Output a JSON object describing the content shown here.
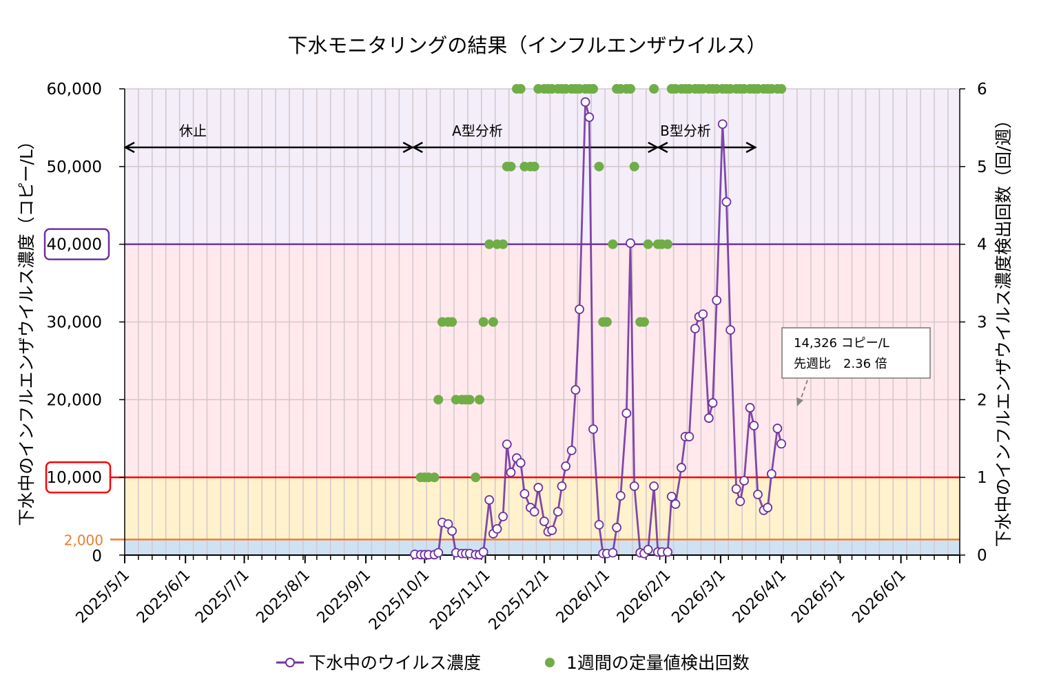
{
  "chart_data": {
    "type": "line",
    "title": "下水モニタリングの結果（インフルエンザウイルス）",
    "ylabel": "下水中のインフルエンザウイルス濃度（コピー/L）",
    "y2label": "下水中のインフルエンザウイルス濃度検出回数（回/週）",
    "ylim": [
      0,
      60000
    ],
    "y2lim": [
      0,
      6
    ],
    "xlim": [
      "2025/5/1",
      "2026/7/1"
    ],
    "y_ticks": [
      "0",
      "2,000",
      "10,000",
      "20,000",
      "30,000",
      "40,000",
      "50,000",
      "60,000"
    ],
    "y_tick_values": [
      0,
      2000,
      10000,
      20000,
      30000,
      40000,
      50000,
      60000
    ],
    "y2_ticks": [
      "0",
      "1",
      "2",
      "3",
      "4",
      "5",
      "6"
    ],
    "x_ticks": [
      "2025/5/1",
      "2025/6/1",
      "2025/7/1",
      "2025/8/1",
      "2025/9/1",
      "2025/10/1",
      "2025/11/1",
      "2025/12/1",
      "2026/1/1",
      "2026/2/1",
      "2026/3/1",
      "2026/4/1",
      "2026/5/1",
      "2026/6/1"
    ],
    "grid": true,
    "legend_position": "bottom",
    "thresholds": [
      {
        "value": 2000,
        "color": "#ed7d31"
      },
      {
        "value": 10000,
        "color": "#ff0000"
      },
      {
        "value": 40000,
        "color": "#7030a0"
      }
    ],
    "bands": [
      {
        "from": 0,
        "to": 2000,
        "color": "#cfe2f3"
      },
      {
        "from": 2000,
        "to": 10000,
        "color": "#fff2cc"
      },
      {
        "from": 10000,
        "to": 40000,
        "color": "#ffe9ec"
      },
      {
        "from": 40000,
        "to": 60000,
        "color": "#f3eefa"
      }
    ],
    "periods": [
      {
        "label": "休止",
        "from": "2025/5/1",
        "to": "2025/9/25"
      },
      {
        "label": "A型分析",
        "from": "2025/9/25",
        "to": "2026/1/28"
      },
      {
        "label": "B型分析",
        "from": "2026/1/28",
        "to": "2026/3/19"
      }
    ],
    "annotation": {
      "line1": "14,326 コピー/L",
      "line2": "先週比　2.36 倍"
    },
    "series": [
      {
        "name": "下水中のウイルス濃度",
        "axis": "left",
        "color": "#7030a0",
        "marker": "open-circle"
      },
      {
        "name": "1週間の定量値検出回数",
        "axis": "right",
        "color": "#70ad47",
        "marker": "filled-circle"
      }
    ],
    "x": [
      "2025/9/26",
      "2025/9/29",
      "2025/10/1",
      "2025/10/3",
      "2025/10/6",
      "2025/10/8",
      "2025/10/10",
      "2025/10/13",
      "2025/10/15",
      "2025/10/17",
      "2025/10/20",
      "2025/10/22",
      "2025/10/24",
      "2025/10/27",
      "2025/10/29",
      "2025/10/31",
      "2025/11/3",
      "2025/11/5",
      "2025/11/7",
      "2025/11/10",
      "2025/11/12",
      "2025/11/14",
      "2025/11/17",
      "2025/11/19",
      "2025/11/21",
      "2025/11/24",
      "2025/11/26",
      "2025/11/28",
      "2025/12/1",
      "2025/12/3",
      "2025/12/5",
      "2025/12/8",
      "2025/12/10",
      "2025/12/12",
      "2025/12/15",
      "2025/12/17",
      "2025/12/19",
      "2025/12/22",
      "2025/12/24",
      "2025/12/26",
      "2025/12/29",
      "2025/12/31",
      "2026/1/2",
      "2026/1/5",
      "2026/1/7",
      "2026/1/9",
      "2026/1/12",
      "2026/1/14",
      "2026/1/16",
      "2026/1/19",
      "2026/1/21",
      "2026/1/23",
      "2026/1/26",
      "2026/1/28",
      "2026/1/30",
      "2026/2/2",
      "2026/2/4",
      "2026/2/6",
      "2026/2/9",
      "2026/2/11",
      "2026/2/13",
      "2026/2/16",
      "2026/2/18",
      "2026/2/20",
      "2026/2/23",
      "2026/2/25",
      "2026/2/27",
      "2026/3/2",
      "2026/3/4",
      "2026/3/6",
      "2026/3/9",
      "2026/3/11",
      "2026/3/13",
      "2026/3/16",
      "2026/3/18",
      "2026/3/20",
      "2026/3/23",
      "2026/3/25",
      "2026/3/27",
      "2026/3/30",
      "2026/4/1"
    ],
    "virus": [
      100,
      50,
      50,
      50,
      50,
      300,
      4200,
      4000,
      3100,
      300,
      200,
      200,
      200,
      50,
      50,
      400,
      7100,
      2750,
      3370,
      4960,
      14260,
      10630,
      12490,
      11870,
      7890,
      6110,
      5580,
      8680,
      4340,
      3010,
      3190,
      5580,
      8860,
      11430,
      13470,
      21260,
      31630,
      58300,
      56350,
      16210,
      3900,
      200,
      200,
      300,
      3540,
      7620,
      18250,
      40140,
      8860,
      300,
      200,
      700,
      8860,
      400,
      400,
      400,
      7530,
      6560,
      11250,
      15240,
      15240,
      29150,
      30660,
      31010,
      17630,
      19580,
      32780,
      55460,
      45450,
      28970,
      8510,
      6910,
      9570,
      18960,
      16660,
      7800,
      5760,
      6110,
      10450,
      16300,
      14326
    ],
    "counts": [
      null,
      1,
      1,
      1,
      1,
      2,
      3,
      3,
      3,
      2,
      2,
      2,
      2,
      1,
      2,
      3,
      4,
      3,
      4,
      4,
      5,
      5,
      6,
      6,
      5,
      5,
      5,
      6,
      6,
      6,
      6,
      6,
      6,
      6,
      6,
      6,
      6,
      6,
      6,
      6,
      5,
      3,
      3,
      4,
      6,
      6,
      6,
      6,
      5,
      3,
      3,
      4,
      6,
      4,
      4,
      4,
      6,
      6,
      6,
      6,
      6,
      6,
      6,
      6,
      6,
      6,
      6,
      6,
      6,
      6,
      6,
      6,
      6,
      6,
      6,
      6,
      6,
      6,
      6,
      6,
      6
    ]
  }
}
